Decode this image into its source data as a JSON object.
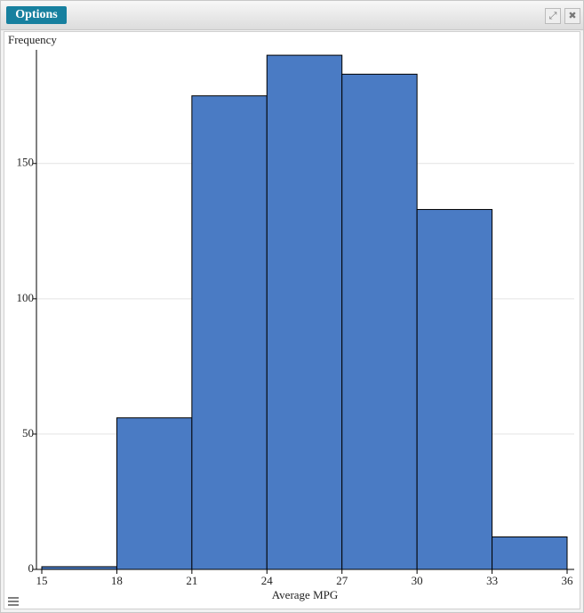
{
  "toolbar": {
    "button": "Options"
  },
  "chart_data": {
    "type": "histogram",
    "y_label": "Frequency",
    "x_label": "Average MPG",
    "bins": [
      15,
      18,
      21,
      24,
      27,
      30,
      33,
      36
    ],
    "values": [
      1,
      56,
      175,
      190,
      183,
      133,
      12
    ],
    "color": "#4a7bc4",
    "xlim": [
      15,
      36
    ],
    "xticks": [
      15,
      18,
      21,
      24,
      27,
      30,
      33,
      36
    ],
    "ylim": [
      0,
      192
    ],
    "yticks": [
      0,
      50,
      100,
      150
    ],
    "grid": true
  }
}
